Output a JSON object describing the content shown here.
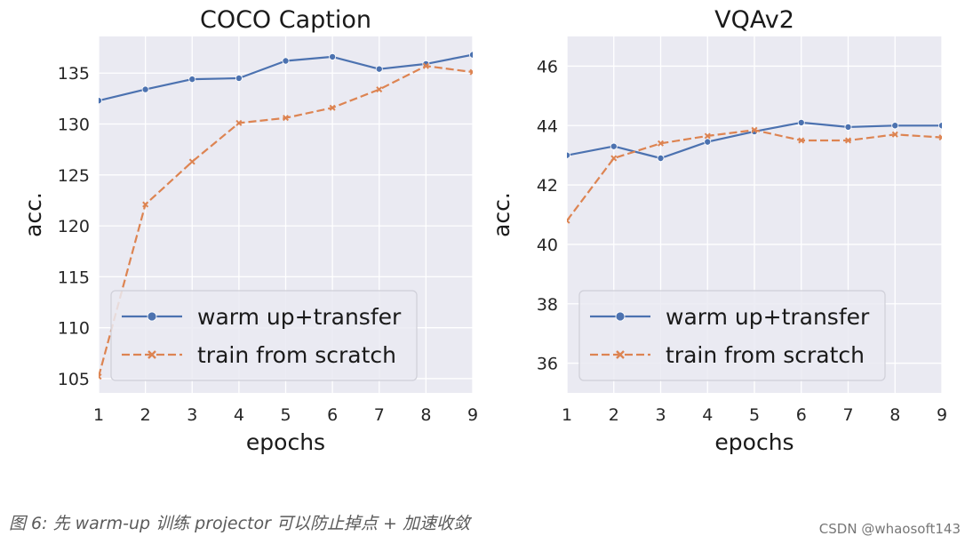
{
  "chart_data": [
    {
      "type": "line",
      "title": "COCO Caption",
      "xlabel": "epochs",
      "ylabel": "acc.",
      "x": [
        1,
        2,
        3,
        4,
        5,
        6,
        7,
        8,
        9
      ],
      "xlim": [
        1,
        9
      ],
      "ylim": [
        103.6,
        138.6
      ],
      "yticks": [
        105,
        110,
        115,
        120,
        125,
        130,
        135
      ],
      "grid": true,
      "legend_position": "lower-left",
      "series": [
        {
          "name": "warm up+transfer",
          "values": [
            132.3,
            133.4,
            134.4,
            134.5,
            136.2,
            136.6,
            135.4,
            135.9,
            136.8
          ],
          "color": "#4c72b0",
          "style": "solid",
          "marker": "circle"
        },
        {
          "name": "train from scratch",
          "values": [
            105.2,
            122.1,
            126.3,
            130.1,
            130.6,
            131.6,
            133.4,
            135.7,
            135.1
          ],
          "color": "#dd8452",
          "style": "dashed",
          "marker": "x"
        }
      ]
    },
    {
      "type": "line",
      "title": "VQAv2",
      "xlabel": "epochs",
      "ylabel": "acc.",
      "x": [
        1,
        2,
        3,
        4,
        5,
        6,
        7,
        8,
        9
      ],
      "xlim": [
        1,
        9
      ],
      "ylim": [
        35.0,
        47.0
      ],
      "yticks": [
        36,
        38,
        40,
        42,
        44,
        46
      ],
      "grid": true,
      "legend_position": "lower-left",
      "series": [
        {
          "name": "warm up+transfer",
          "values": [
            43.0,
            43.3,
            42.9,
            43.45,
            43.8,
            44.1,
            43.95,
            44.0,
            44.0
          ],
          "color": "#4c72b0",
          "style": "solid",
          "marker": "circle"
        },
        {
          "name": "train from scratch",
          "values": [
            40.8,
            42.9,
            43.4,
            43.65,
            43.85,
            43.5,
            43.5,
            43.7,
            43.6
          ],
          "color": "#dd8452",
          "style": "dashed",
          "marker": "x"
        }
      ]
    }
  ],
  "caption": "图 6: 先 warm-up 训练 projector 可以防止掉点 + 加速收敛",
  "watermark": "CSDN @whaosoft143"
}
